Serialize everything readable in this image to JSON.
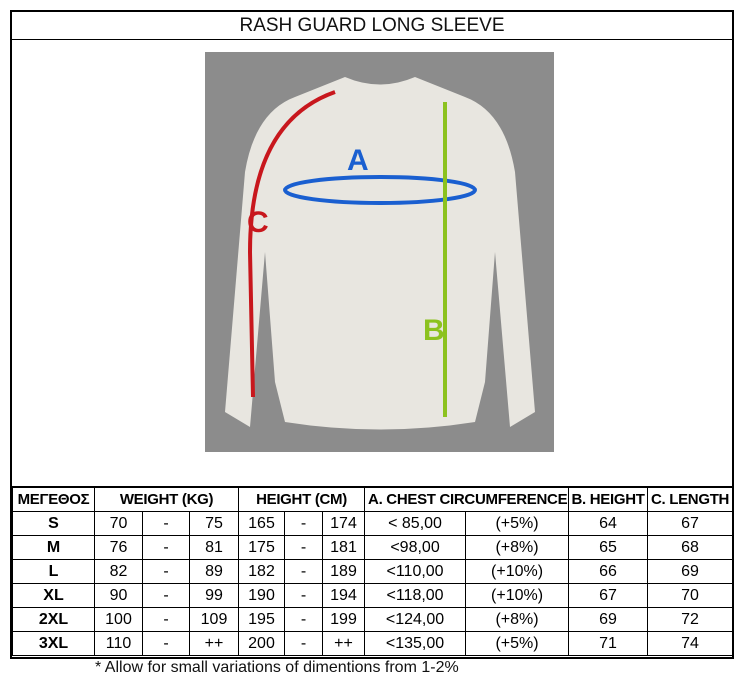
{
  "title": "RASH GUARD LONG SLEEVE",
  "diagram_labels": {
    "a": "A",
    "b": "B",
    "c": "C"
  },
  "colors": {
    "a": "#1a5fd0",
    "b": "#8cc21f",
    "c": "#c8171d"
  },
  "table": {
    "headers": [
      "ΜΕΓΕΘΟΣ",
      "WEIGHT (KG)",
      "HEIGHT (CM)",
      "A. CHEST CIRCUMFERENCE",
      "B. HEIGHT",
      "C. LENGTH"
    ],
    "rows": [
      {
        "size": "S",
        "w_min": "70",
        "w_sep": "-",
        "w_max": "75",
        "h_min": "165",
        "h_sep": "-",
        "h_max": "174",
        "chest": "< 85,00",
        "tol": "(+5%)",
        "b": "64",
        "c": "67"
      },
      {
        "size": "M",
        "w_min": "76",
        "w_sep": "-",
        "w_max": "81",
        "h_min": "175",
        "h_sep": "-",
        "h_max": "181",
        "chest": "<98,00",
        "tol": "(+8%)",
        "b": "65",
        "c": "68"
      },
      {
        "size": "L",
        "w_min": "82",
        "w_sep": "-",
        "w_max": "89",
        "h_min": "182",
        "h_sep": "-",
        "h_max": "189",
        "chest": "<110,00",
        "tol": "(+10%)",
        "b": "66",
        "c": "69"
      },
      {
        "size": "XL",
        "w_min": "90",
        "w_sep": "-",
        "w_max": "99",
        "h_min": "190",
        "h_sep": "-",
        "h_max": "194",
        "chest": "<118,00",
        "tol": "(+10%)",
        "b": "67",
        "c": "70"
      },
      {
        "size": "2XL",
        "w_min": "100",
        "w_sep": "-",
        "w_max": "109",
        "h_min": "195",
        "h_sep": "-",
        "h_max": "199",
        "chest": "<124,00",
        "tol": "(+8%)",
        "b": "69",
        "c": "72"
      },
      {
        "size": "3XL",
        "w_min": "110",
        "w_sep": "-",
        "w_max": "++",
        "h_min": "200",
        "h_sep": "-",
        "h_max": "++",
        "chest": "<135,00",
        "tol": "(+5%)",
        "b": "71",
        "c": "74"
      }
    ]
  },
  "note": "* Allow for small variations of dimentions from 1-2%"
}
